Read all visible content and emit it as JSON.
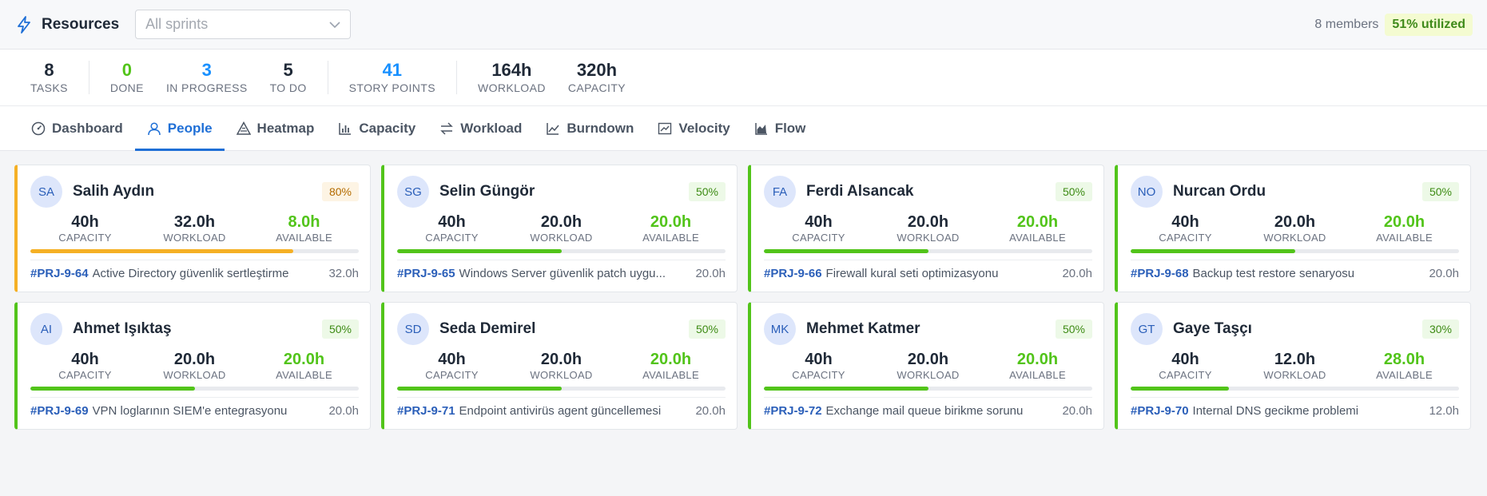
{
  "header": {
    "title": "Resources",
    "sprint_placeholder": "All sprints",
    "members": "8 members",
    "utilization": "51% utilized"
  },
  "stats": [
    {
      "value": "8",
      "label": "TASKS"
    },
    {
      "value": "0",
      "label": "DONE"
    },
    {
      "value": "3",
      "label": "IN PROGRESS"
    },
    {
      "value": "5",
      "label": "TO DO"
    },
    {
      "value": "41",
      "label": "STORY POINTS"
    },
    {
      "value": "164h",
      "label": "WORKLOAD"
    },
    {
      "value": "320h",
      "label": "CAPACITY"
    }
  ],
  "tabs": [
    {
      "label": "Dashboard",
      "icon": "dashboard-icon"
    },
    {
      "label": "People",
      "icon": "person-icon"
    },
    {
      "label": "Heatmap",
      "icon": "heatmap-icon"
    },
    {
      "label": "Capacity",
      "icon": "bar-chart-icon"
    },
    {
      "label": "Workload",
      "icon": "swap-icon"
    },
    {
      "label": "Burndown",
      "icon": "line-chart-icon"
    },
    {
      "label": "Velocity",
      "icon": "velocity-icon"
    },
    {
      "label": "Flow",
      "icon": "area-chart-icon"
    }
  ],
  "active_tab": "People",
  "metric_labels": {
    "capacity": "CAPACITY",
    "workload": "WORKLOAD",
    "available": "AVAILABLE"
  },
  "people": [
    {
      "initials": "SA",
      "name": "Salih Aydın",
      "pct": "80%",
      "capacity": "40h",
      "workload": "32.0h",
      "available": "8.0h",
      "load": 0.8,
      "warn": true,
      "task_id": "#PRJ-9-64",
      "task_name": "Active Directory güvenlik sertleştirme",
      "task_hours": "32.0h"
    },
    {
      "initials": "SG",
      "name": "Selin Güngör",
      "pct": "50%",
      "capacity": "40h",
      "workload": "20.0h",
      "available": "20.0h",
      "load": 0.5,
      "warn": false,
      "task_id": "#PRJ-9-65",
      "task_name": "Windows Server güvenlik patch uygu...",
      "task_hours": "20.0h"
    },
    {
      "initials": "FA",
      "name": "Ferdi Alsancak",
      "pct": "50%",
      "capacity": "40h",
      "workload": "20.0h",
      "available": "20.0h",
      "load": 0.5,
      "warn": false,
      "task_id": "#PRJ-9-66",
      "task_name": "Firewall kural seti optimizasyonu",
      "task_hours": "20.0h"
    },
    {
      "initials": "NO",
      "name": "Nurcan Ordu",
      "pct": "50%",
      "capacity": "40h",
      "workload": "20.0h",
      "available": "20.0h",
      "load": 0.5,
      "warn": false,
      "task_id": "#PRJ-9-68",
      "task_name": "Backup test restore senaryosu",
      "task_hours": "20.0h"
    },
    {
      "initials": "AI",
      "name": "Ahmet Işıktaş",
      "pct": "50%",
      "capacity": "40h",
      "workload": "20.0h",
      "available": "20.0h",
      "load": 0.5,
      "warn": false,
      "task_id": "#PRJ-9-69",
      "task_name": "VPN loglarının SIEM'e entegrasyonu",
      "task_hours": "20.0h"
    },
    {
      "initials": "SD",
      "name": "Seda Demirel",
      "pct": "50%",
      "capacity": "40h",
      "workload": "20.0h",
      "available": "20.0h",
      "load": 0.5,
      "warn": false,
      "task_id": "#PRJ-9-71",
      "task_name": "Endpoint antivirüs agent güncellemesi",
      "task_hours": "20.0h"
    },
    {
      "initials": "MK",
      "name": "Mehmet Katmer",
      "pct": "50%",
      "capacity": "40h",
      "workload": "20.0h",
      "available": "20.0h",
      "load": 0.5,
      "warn": false,
      "task_id": "#PRJ-9-72",
      "task_name": "Exchange mail queue birikme sorunu",
      "task_hours": "20.0h"
    },
    {
      "initials": "GT",
      "name": "Gaye Taşçı",
      "pct": "30%",
      "capacity": "40h",
      "workload": "12.0h",
      "available": "28.0h",
      "load": 0.3,
      "warn": false,
      "task_id": "#PRJ-9-70",
      "task_name": "Internal DNS gecikme problemi",
      "task_hours": "12.0h"
    }
  ],
  "colors": {
    "accent": "#1f6fd6",
    "green": "#52c41a",
    "warn": "#f5b025"
  }
}
